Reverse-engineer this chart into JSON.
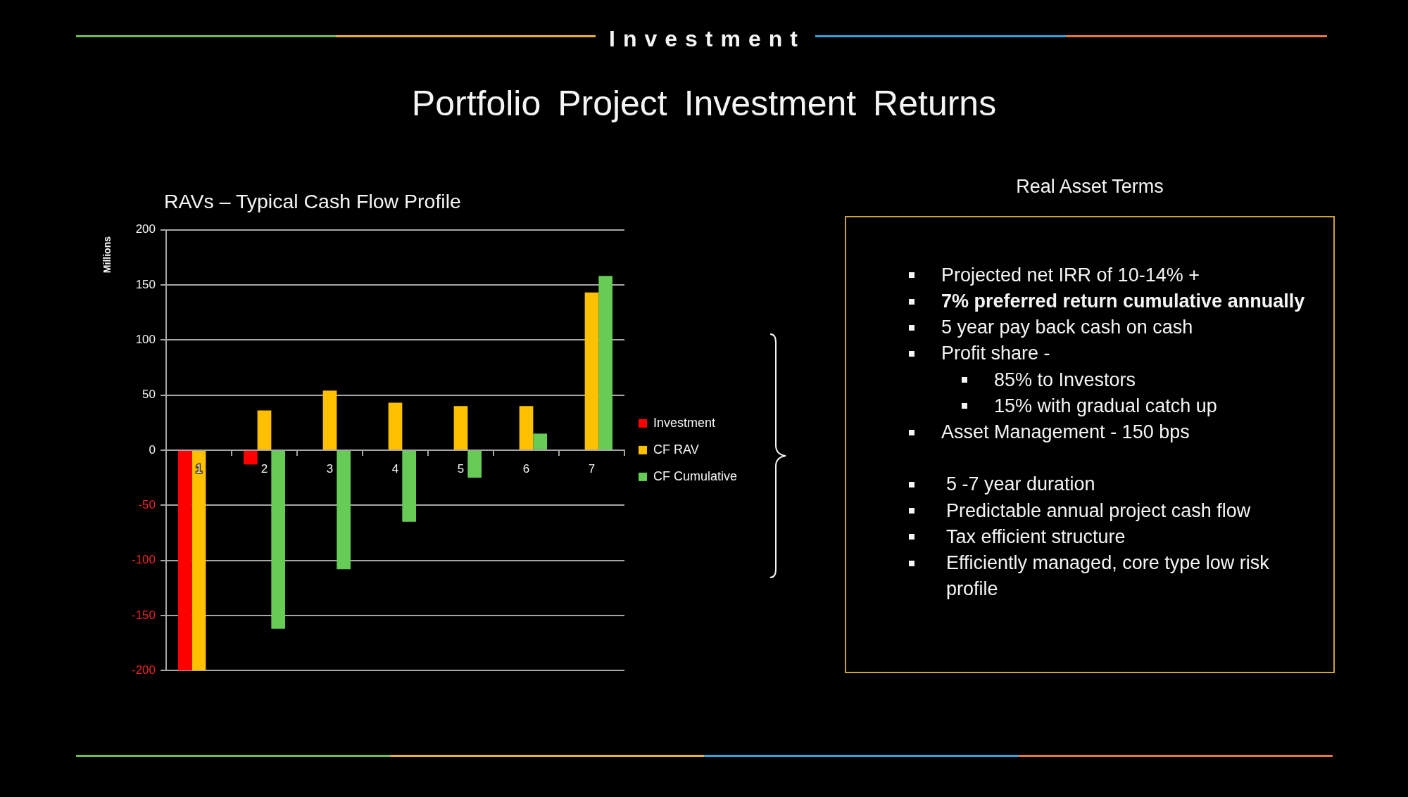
{
  "chart_data": [
    {
      "type": "other",
      "title": "Investment",
      "subtitle": "Portfolio Project Investment Returns"
    },
    {
      "type": "bar",
      "title": "RAVs – Typical Cash Flow Profile",
      "ylabel": "Millions",
      "categories": [
        "1",
        "2",
        "3",
        "4",
        "5",
        "6",
        "7"
      ],
      "series": [
        {
          "name": "Investment",
          "color": "#ff0000",
          "values": [
            -200,
            -13,
            null,
            null,
            null,
            null,
            null
          ]
        },
        {
          "name": "CF RAV",
          "color": "#ffc000",
          "values": [
            -200,
            36,
            54,
            43,
            40,
            40,
            143
          ]
        },
        {
          "name": "CF Cumulative",
          "color": "#66cc55",
          "values": [
            null,
            -162,
            -108,
            -65,
            -25,
            15,
            158
          ]
        }
      ],
      "ylim": [
        -200,
        200
      ],
      "yticks": [
        -200,
        -150,
        -100,
        -50,
        0,
        50,
        100,
        150,
        200
      ],
      "grid": "y",
      "legend": "right"
    },
    {
      "type": "other",
      "title": "Real Asset Terms",
      "annotations": [
        "Projected net IRR of 10-14% +",
        "7% preferred return cumulative annually",
        "5 year pay back cash on cash",
        "Profit share -",
        "85% to Investors",
        "15% with gradual catch up",
        "Asset Management - 150 bps",
        "5 -7 year duration",
        "Predictable annual project cash flow",
        "Tax efficient structure",
        "Efficiently managed, core type low risk profile"
      ]
    }
  ]
}
